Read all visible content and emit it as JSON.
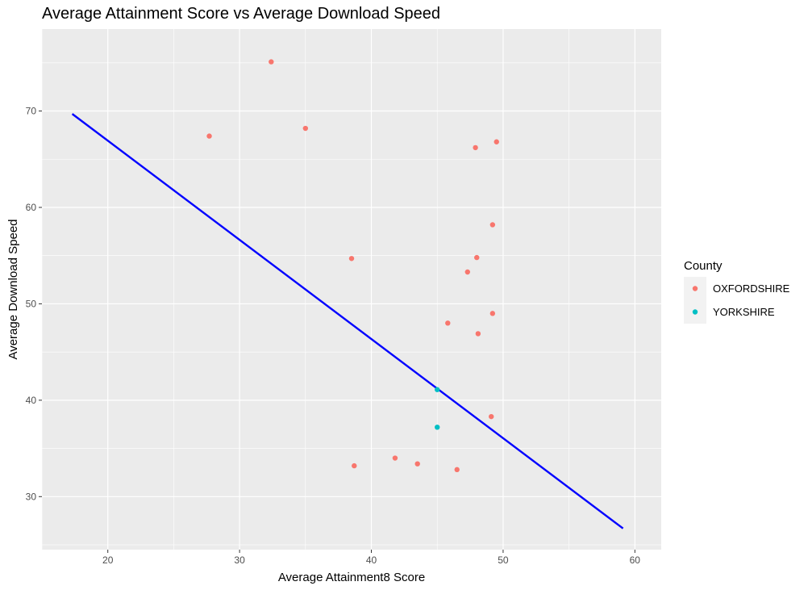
{
  "chart_data": {
    "type": "scatter",
    "title": "Average Attainment Score vs Average Download Speed",
    "xlabel": "Average Attainment8 Score",
    "ylabel": "Average Download Speed",
    "xlim": [
      15,
      62
    ],
    "ylim": [
      24.5,
      78.5
    ],
    "x_ticks": [
      20,
      30,
      40,
      50,
      60
    ],
    "y_ticks": [
      30,
      40,
      50,
      60,
      70
    ],
    "grid": true,
    "legend_title": "County",
    "legend_position": "right",
    "series": [
      {
        "name": "OXFORDSHIRE",
        "color": "#F8766D",
        "points": [
          [
            32.4,
            75.1
          ],
          [
            27.7,
            67.4
          ],
          [
            35.0,
            68.2
          ],
          [
            47.9,
            66.2
          ],
          [
            49.5,
            66.8
          ],
          [
            49.2,
            58.2
          ],
          [
            38.5,
            54.7
          ],
          [
            48.0,
            54.8
          ],
          [
            47.3,
            53.3
          ],
          [
            49.2,
            49.0
          ],
          [
            45.8,
            48.0
          ],
          [
            48.1,
            46.9
          ],
          [
            49.1,
            38.3
          ],
          [
            38.7,
            33.2
          ],
          [
            41.8,
            34.0
          ],
          [
            43.5,
            33.4
          ],
          [
            46.5,
            32.8
          ]
        ]
      },
      {
        "name": "YORKSHIRE",
        "color": "#00BFC4",
        "points": [
          [
            45.0,
            41.1
          ],
          [
            45.0,
            37.2
          ]
        ]
      }
    ],
    "trend_line": {
      "color": "#0000FF",
      "x": [
        17.3,
        59.1
      ],
      "y": [
        69.7,
        26.7
      ]
    }
  }
}
